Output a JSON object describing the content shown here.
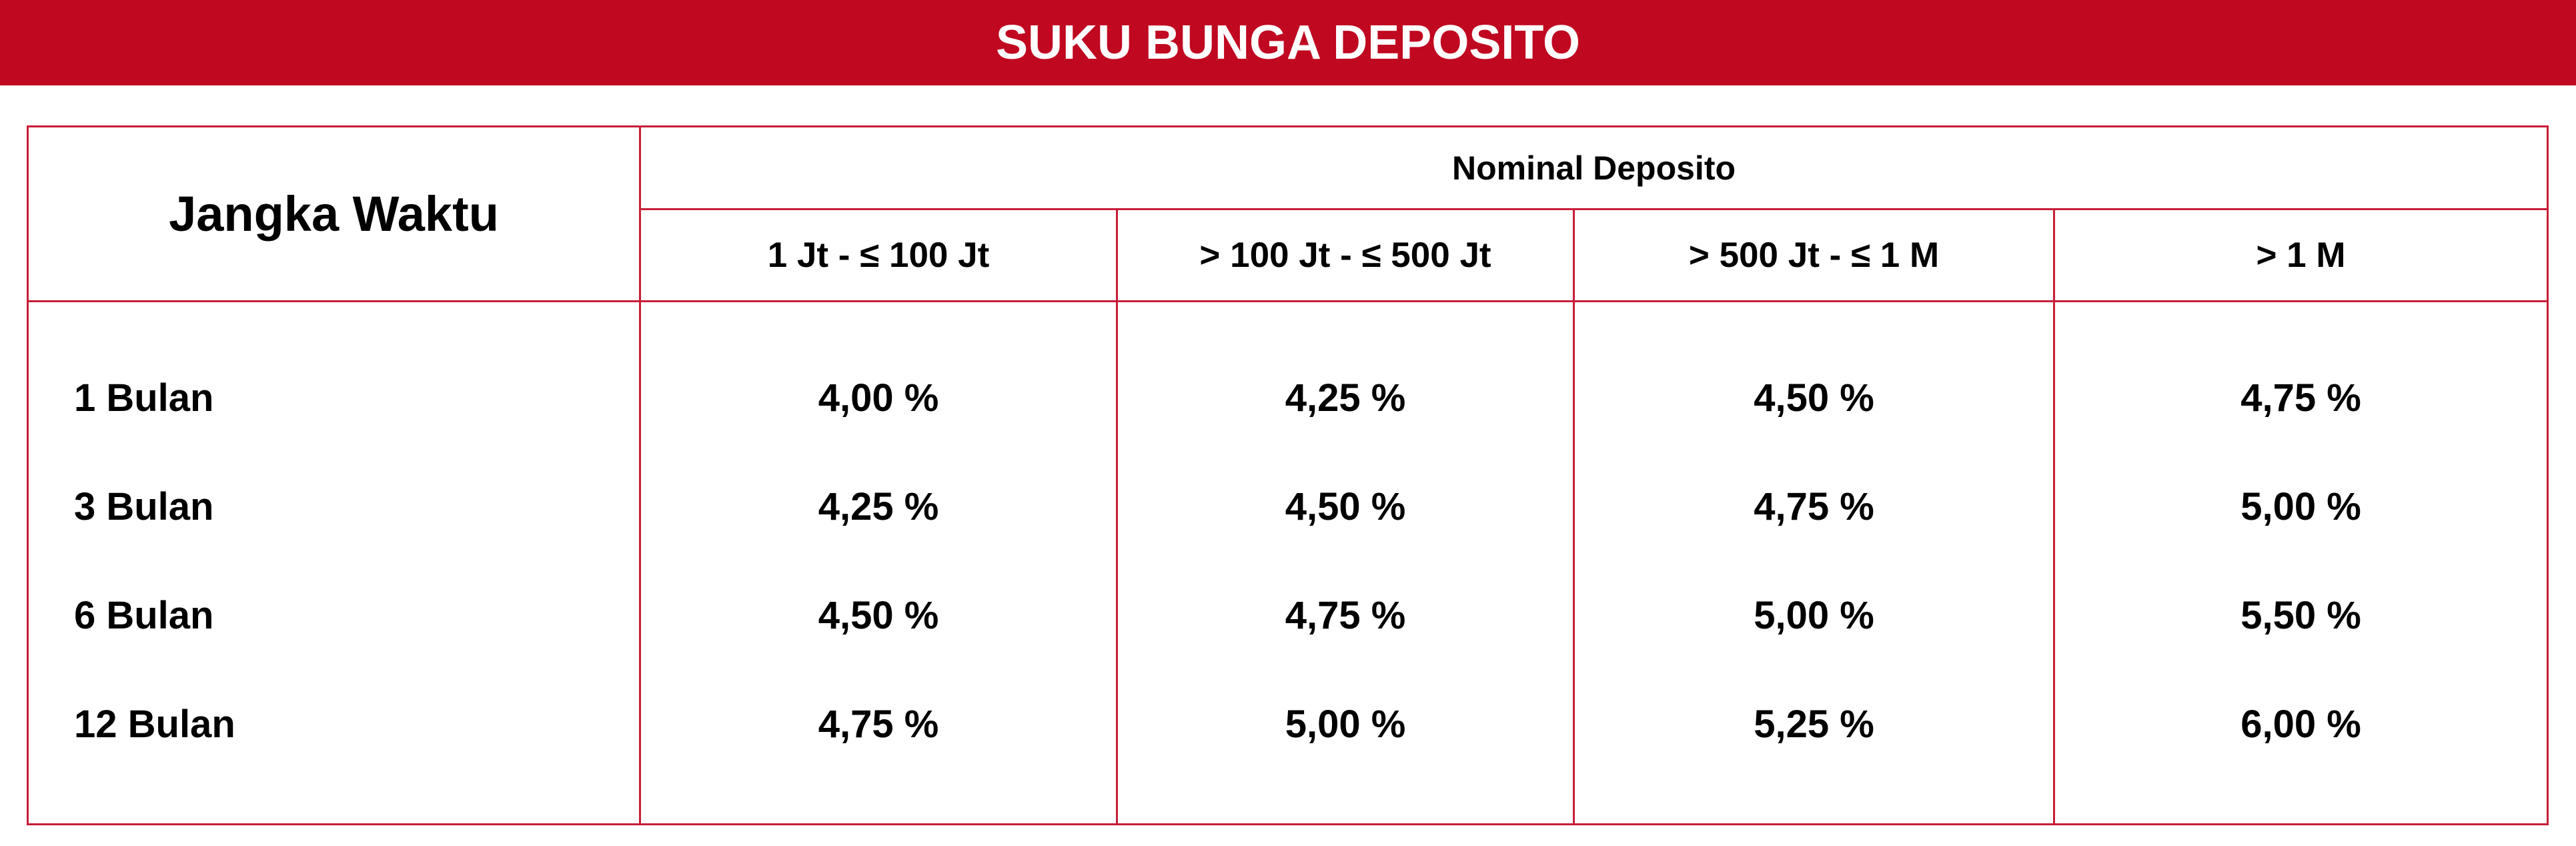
{
  "title": "SUKU BUNGA DEPOSITO",
  "table": {
    "term_header": "Jangka Waktu",
    "nominal_header": "Nominal Deposito",
    "columns": [
      "1 Jt - ≤ 100 Jt",
      "> 100 Jt - ≤ 500 Jt",
      "> 500 Jt - ≤ 1 M",
      "> 1 M"
    ],
    "rows": [
      {
        "term": "1 Bulan",
        "rates": [
          "4,00 %",
          "4,25 %",
          "4,50 %",
          "4,75 %"
        ]
      },
      {
        "term": "3 Bulan",
        "rates": [
          "4,25 %",
          "4,50 %",
          "4,75 %",
          "5,00 %"
        ]
      },
      {
        "term": "6 Bulan",
        "rates": [
          "4,50 %",
          "4,75 %",
          "5,00 %",
          "5,50 %"
        ]
      },
      {
        "term": "12 Bulan",
        "rates": [
          "4,75 %",
          "5,00 %",
          "5,25 %",
          "6,00 %"
        ]
      }
    ]
  },
  "colors": {
    "banner": "#c00821",
    "border": "#c71d37",
    "text": "#000000"
  }
}
